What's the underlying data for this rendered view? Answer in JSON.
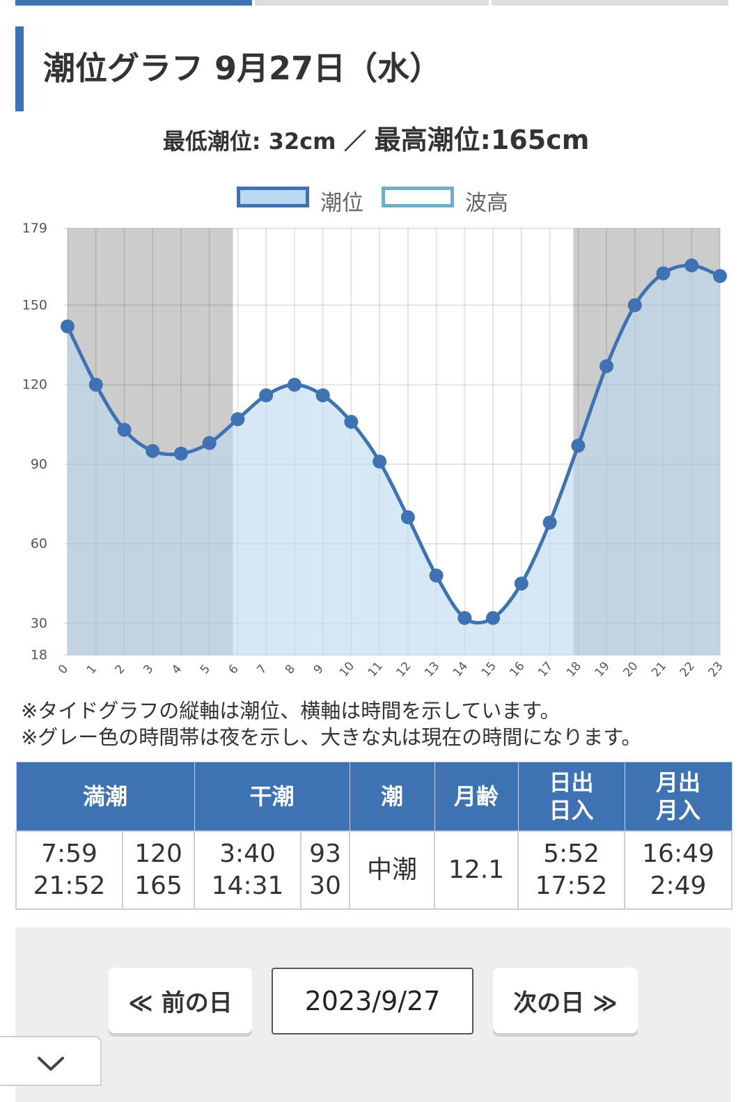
{
  "page": {
    "title": "潮位グラフ 9月27日（水）",
    "min_label": "最低潮位: 32cm",
    "separator": "／",
    "max_label": "最高潮位:165cm"
  },
  "legend": {
    "tide": "潮位",
    "wave": "波高"
  },
  "colors": {
    "accent": "#3f72b3",
    "tide_fill": "#bad8f0",
    "night": "#cccccc",
    "wave_border": "#6faec8"
  },
  "chart_data": {
    "type": "area",
    "x": [
      0,
      1,
      2,
      3,
      4,
      5,
      6,
      7,
      8,
      9,
      10,
      11,
      12,
      13,
      14,
      15,
      16,
      17,
      18,
      19,
      20,
      21,
      22,
      23
    ],
    "series": [
      {
        "name": "潮位",
        "values": [
          142,
          120,
          103,
          95,
          94,
          98,
          107,
          116,
          120,
          116,
          106,
          91,
          70,
          48,
          32,
          32,
          45,
          68,
          97,
          127,
          150,
          162,
          165,
          161
        ]
      }
    ],
    "ylim": [
      18,
      179
    ],
    "yticks": [
      18,
      30,
      60,
      90,
      120,
      150,
      179
    ],
    "night_ranges": [
      [
        0,
        5.83
      ],
      [
        17.83,
        23
      ]
    ],
    "grid": true,
    "legend_position": "top-center"
  },
  "notes": [
    "※タイドグラフの縦軸は潮位、横軸は時間を示しています。",
    "※グレー色の時間帯は夜を示し、大きな丸は現在の時間になります。"
  ],
  "table": {
    "headers": [
      "満潮",
      "干潮",
      "潮",
      "月齢",
      "日出\n日入",
      "月出\n月入"
    ],
    "high_times": "7:59\n21:52",
    "high_levels": "120\n165",
    "low_times": "3:40\n14:31",
    "low_levels": "93\n30",
    "tide_type": "中潮",
    "moon_age": "12.1",
    "sun": "5:52\n17:52",
    "moon": "16:49\n2:49"
  },
  "nav": {
    "prev": "≪ 前の日",
    "date": "2023/9/27",
    "next": "次の日 ≫",
    "collapse_icon": "chevron-down-icon"
  }
}
